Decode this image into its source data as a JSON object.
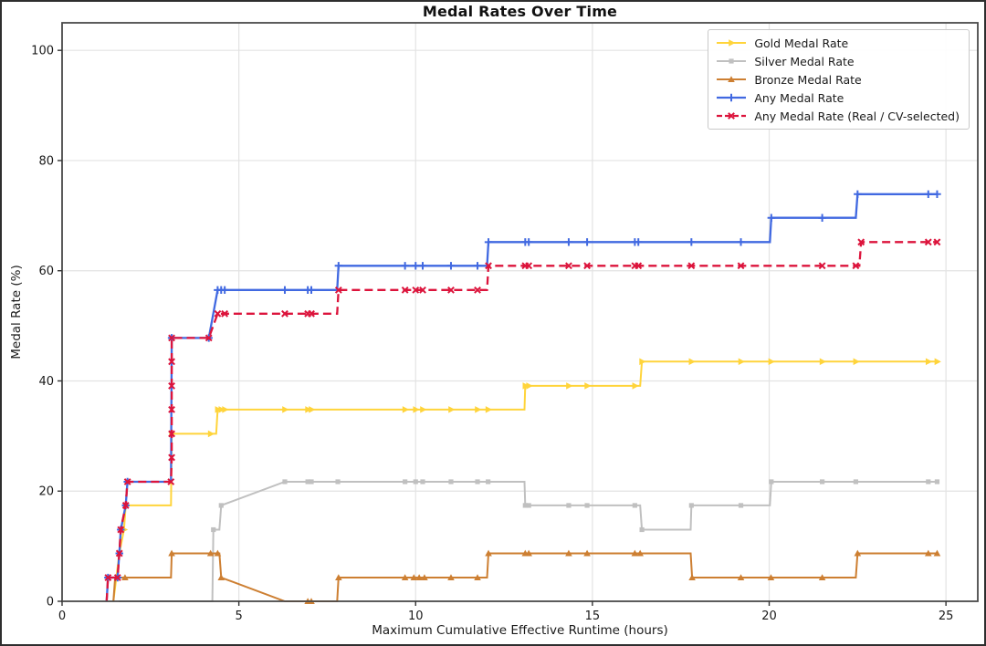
{
  "window": {
    "background": "#ffffff",
    "border_color": "#2e2e2e"
  },
  "chart_data": {
    "type": "line",
    "title": "Medal Rates Over Time",
    "xlabel": "Maximum Cumulative Effective Runtime (hours)",
    "ylabel": "Medal Rate (%)",
    "xlim": [
      0,
      25.9
    ],
    "ylim": [
      0,
      105
    ],
    "xticks": [
      0,
      5,
      10,
      15,
      20,
      25
    ],
    "yticks": [
      0,
      20,
      40,
      60,
      80,
      100
    ],
    "xtick_labels": [
      "0",
      "5",
      "10",
      "15",
      "20",
      "25"
    ],
    "ytick_labels": [
      "0",
      "20",
      "40",
      "60",
      "80",
      "100"
    ],
    "grid": true,
    "grid_color": "#e3e3e3",
    "frame_color": "#4a4a4a",
    "legend_position": "upper right",
    "series": [
      {
        "name": "Gold Medal Rate",
        "color": "#FFD43B",
        "marker": "tri-right",
        "dash": null,
        "width": 2,
        "points": [
          [
            1.45,
            0,
            0
          ],
          [
            1.62,
            8.7,
            1
          ],
          [
            1.75,
            13,
            1
          ],
          [
            1.8,
            17.4,
            1
          ],
          [
            3.08,
            17.4,
            0
          ],
          [
            3.1,
            30.4,
            1
          ],
          [
            4.2,
            30.4,
            1
          ],
          [
            4.36,
            30.4,
            0
          ],
          [
            4.4,
            34.8,
            1
          ],
          [
            4.5,
            34.8,
            1
          ],
          [
            4.6,
            34.8,
            1
          ],
          [
            6.3,
            34.8,
            1
          ],
          [
            6.95,
            34.8,
            1
          ],
          [
            7.05,
            34.8,
            1
          ],
          [
            9.7,
            34.8,
            1
          ],
          [
            10,
            34.8,
            1
          ],
          [
            10.2,
            34.8,
            1
          ],
          [
            11,
            34.8,
            1
          ],
          [
            11.75,
            34.8,
            1
          ],
          [
            12.05,
            34.8,
            1
          ],
          [
            13.08,
            34.8,
            0
          ],
          [
            13.1,
            39.1,
            1
          ],
          [
            13.2,
            39.1,
            1
          ],
          [
            14.33,
            39.1,
            1
          ],
          [
            14.85,
            39.1,
            1
          ],
          [
            16.2,
            39.1,
            1
          ],
          [
            16.35,
            39.1,
            0
          ],
          [
            16.4,
            43.5,
            1
          ],
          [
            17.8,
            43.5,
            1
          ],
          [
            19.2,
            43.5,
            1
          ],
          [
            20.05,
            43.5,
            1
          ],
          [
            21.5,
            43.5,
            1
          ],
          [
            22.45,
            43.5,
            1
          ],
          [
            24.5,
            43.5,
            1
          ],
          [
            24.75,
            43.5,
            1
          ]
        ]
      },
      {
        "name": "Silver Medal Rate",
        "color": "#C0C0C0",
        "marker": "square",
        "dash": null,
        "width": 2,
        "points": [
          [
            1.6,
            0,
            0
          ],
          [
            4.25,
            0,
            0
          ],
          [
            4.28,
            13,
            1
          ],
          [
            4.45,
            13,
            0
          ],
          [
            4.5,
            17.4,
            1
          ],
          [
            6.3,
            21.7,
            1
          ],
          [
            6.95,
            21.7,
            1
          ],
          [
            7.05,
            21.7,
            1
          ],
          [
            7.8,
            21.7,
            1
          ],
          [
            9.7,
            21.7,
            1
          ],
          [
            10,
            21.7,
            1
          ],
          [
            10.2,
            21.7,
            1
          ],
          [
            11,
            21.7,
            1
          ],
          [
            11.75,
            21.7,
            1
          ],
          [
            12.05,
            21.7,
            1
          ],
          [
            13.08,
            21.7,
            0
          ],
          [
            13.1,
            17.4,
            1
          ],
          [
            13.2,
            17.4,
            1
          ],
          [
            14.33,
            17.4,
            1
          ],
          [
            14.85,
            17.4,
            1
          ],
          [
            16.2,
            17.4,
            1
          ],
          [
            16.35,
            17.4,
            0
          ],
          [
            16.4,
            13,
            1
          ],
          [
            17.78,
            13,
            0
          ],
          [
            17.8,
            17.4,
            1
          ],
          [
            19.2,
            17.4,
            1
          ],
          [
            20.02,
            17.4,
            0
          ],
          [
            20.06,
            21.7,
            1
          ],
          [
            21.5,
            21.7,
            1
          ],
          [
            22.45,
            21.7,
            1
          ],
          [
            24.5,
            21.7,
            1
          ],
          [
            24.75,
            21.7,
            1
          ]
        ]
      },
      {
        "name": "Bronze Medal Rate",
        "color": "#CD7F32",
        "marker": "tri-up",
        "dash": null,
        "width": 2,
        "points": [
          [
            1.45,
            0,
            0
          ],
          [
            1.5,
            4.3,
            0
          ],
          [
            1.78,
            4.3,
            1
          ],
          [
            3.08,
            4.3,
            0
          ],
          [
            3.1,
            8.7,
            1
          ],
          [
            4.2,
            8.7,
            1
          ],
          [
            4.4,
            8.7,
            1
          ],
          [
            4.45,
            8.7,
            0
          ],
          [
            4.5,
            4.3,
            1
          ],
          [
            6.3,
            0,
            0
          ],
          [
            6.95,
            0,
            1
          ],
          [
            7.05,
            0,
            1
          ],
          [
            7.78,
            0,
            0
          ],
          [
            7.82,
            4.3,
            1
          ],
          [
            9.7,
            4.3,
            1
          ],
          [
            9.95,
            4.3,
            1
          ],
          [
            10.1,
            4.3,
            1
          ],
          [
            10.25,
            4.3,
            1
          ],
          [
            11,
            4.3,
            1
          ],
          [
            11.75,
            4.3,
            1
          ],
          [
            12.02,
            4.3,
            0
          ],
          [
            12.06,
            8.7,
            1
          ],
          [
            13.1,
            8.7,
            1
          ],
          [
            13.2,
            8.7,
            1
          ],
          [
            14.33,
            8.7,
            1
          ],
          [
            14.85,
            8.7,
            1
          ],
          [
            16.2,
            8.7,
            1
          ],
          [
            16.35,
            8.7,
            1
          ],
          [
            17.78,
            8.7,
            0
          ],
          [
            17.82,
            4.3,
            1
          ],
          [
            19.2,
            4.3,
            1
          ],
          [
            20.05,
            4.3,
            1
          ],
          [
            21.5,
            4.3,
            1
          ],
          [
            22.45,
            4.3,
            0
          ],
          [
            22.5,
            8.7,
            1
          ],
          [
            24.5,
            8.7,
            1
          ],
          [
            24.75,
            8.7,
            1
          ]
        ]
      },
      {
        "name": "Any Medal Rate",
        "color": "#4169E1",
        "marker": "plus",
        "dash": null,
        "width": 2.3,
        "points": [
          [
            1.26,
            0,
            0
          ],
          [
            1.3,
            4.3,
            1
          ],
          [
            1.57,
            4.3,
            1
          ],
          [
            1.62,
            8.7,
            1
          ],
          [
            1.66,
            13,
            1
          ],
          [
            1.8,
            17.4,
            1
          ],
          [
            1.85,
            21.7,
            1
          ],
          [
            3.08,
            21.7,
            0
          ],
          [
            3.1,
            47.8,
            1
          ],
          [
            4.15,
            47.8,
            1
          ],
          [
            4.4,
            56.5,
            1
          ],
          [
            4.5,
            56.5,
            1
          ],
          [
            4.6,
            56.5,
            1
          ],
          [
            6.3,
            56.5,
            1
          ],
          [
            6.95,
            56.5,
            1
          ],
          [
            7.05,
            56.5,
            1
          ],
          [
            7.78,
            56.5,
            0
          ],
          [
            7.82,
            60.9,
            1
          ],
          [
            9.7,
            60.9,
            1
          ],
          [
            10,
            60.9,
            1
          ],
          [
            10.2,
            60.9,
            1
          ],
          [
            11,
            60.9,
            1
          ],
          [
            11.75,
            60.9,
            1
          ],
          [
            12.02,
            60.9,
            0
          ],
          [
            12.06,
            65.2,
            1
          ],
          [
            13.1,
            65.2,
            1
          ],
          [
            13.2,
            65.2,
            1
          ],
          [
            14.33,
            65.2,
            1
          ],
          [
            14.85,
            65.2,
            1
          ],
          [
            16.2,
            65.2,
            1
          ],
          [
            16.3,
            65.2,
            1
          ],
          [
            17.8,
            65.2,
            1
          ],
          [
            19.2,
            65.2,
            1
          ],
          [
            20.02,
            65.2,
            0
          ],
          [
            20.06,
            69.6,
            1
          ],
          [
            21.5,
            69.6,
            1
          ],
          [
            22.45,
            69.6,
            0
          ],
          [
            22.5,
            73.9,
            1
          ],
          [
            24.5,
            73.9,
            1
          ],
          [
            24.75,
            73.9,
            1
          ]
        ]
      },
      {
        "name": "Any Medal Rate (Real / CV-selected)",
        "color": "#DC143C",
        "marker": "x",
        "dash": "9 5",
        "width": 2.3,
        "points": [
          [
            1.26,
            0,
            0
          ],
          [
            1.3,
            4.3,
            1
          ],
          [
            1.57,
            4.3,
            1
          ],
          [
            1.62,
            8.7,
            1
          ],
          [
            1.66,
            13,
            1
          ],
          [
            1.8,
            17.4,
            1
          ],
          [
            1.85,
            21.7,
            1
          ],
          [
            3.08,
            21.7,
            1
          ],
          [
            3.1,
            26.1,
            1
          ],
          [
            3.1,
            30.4,
            1
          ],
          [
            3.1,
            34.8,
            1
          ],
          [
            3.1,
            39.1,
            1
          ],
          [
            3.1,
            43.5,
            1
          ],
          [
            3.1,
            47.8,
            1
          ],
          [
            4.15,
            47.8,
            1
          ],
          [
            4.4,
            52.2,
            1
          ],
          [
            4.6,
            52.2,
            1
          ],
          [
            6.3,
            52.2,
            1
          ],
          [
            6.95,
            52.2,
            1
          ],
          [
            7.05,
            52.2,
            1
          ],
          [
            7.78,
            52.2,
            0
          ],
          [
            7.82,
            56.5,
            1
          ],
          [
            9.7,
            56.5,
            1
          ],
          [
            10,
            56.5,
            1
          ],
          [
            10.2,
            56.5,
            1
          ],
          [
            11,
            56.5,
            1
          ],
          [
            11.75,
            56.5,
            1
          ],
          [
            12.02,
            56.5,
            0
          ],
          [
            12.06,
            60.9,
            1
          ],
          [
            13.1,
            60.9,
            1
          ],
          [
            13.2,
            60.9,
            1
          ],
          [
            14.33,
            60.9,
            1
          ],
          [
            14.85,
            60.9,
            1
          ],
          [
            16.2,
            60.9,
            1
          ],
          [
            16.3,
            60.9,
            1
          ],
          [
            17.8,
            60.9,
            1
          ],
          [
            19.2,
            60.9,
            1
          ],
          [
            21.5,
            60.9,
            1
          ],
          [
            22.45,
            60.9,
            1
          ],
          [
            22.55,
            60.9,
            0
          ],
          [
            22.6,
            65.2,
            1
          ],
          [
            24.5,
            65.2,
            1
          ],
          [
            24.75,
            65.2,
            1
          ]
        ]
      }
    ]
  }
}
